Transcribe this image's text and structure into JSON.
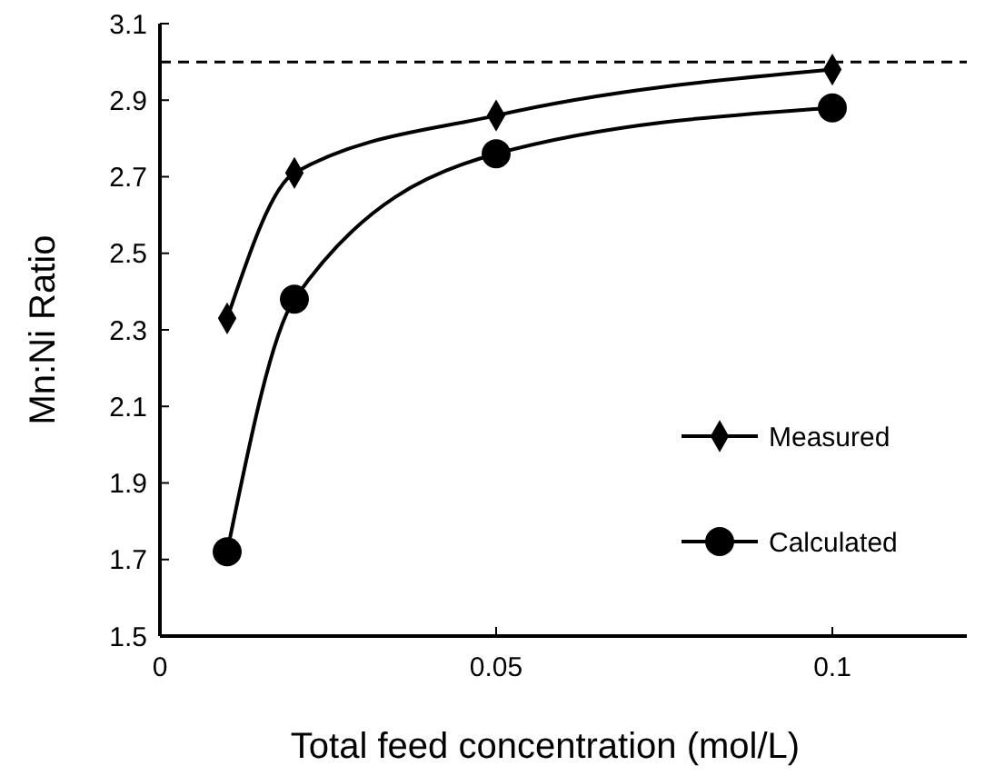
{
  "chart_data": {
    "type": "line",
    "xlabel": "Total feed concentration (mol/L)",
    "ylabel": "Mn:Ni Ratio",
    "xlim": [
      0,
      0.12
    ],
    "xticks": [
      0,
      0.05,
      0.1
    ],
    "ylim": [
      1.5,
      3.1
    ],
    "yticks": [
      1.5,
      1.7,
      1.9,
      2.1,
      2.3,
      2.5,
      2.7,
      2.9,
      3.1
    ],
    "legend": "right",
    "grid": false,
    "series": [
      {
        "name": "Measured",
        "color": "#000000",
        "marker": "diamond",
        "x": [
          0.01,
          0.02,
          0.05,
          0.1
        ],
        "values": [
          2.33,
          2.71,
          2.86,
          2.98
        ]
      },
      {
        "name": "Calculated",
        "color": "#000000",
        "marker": "circle",
        "x": [
          0.01,
          0.02,
          0.05,
          0.1
        ],
        "values": [
          1.72,
          2.38,
          2.76,
          2.88
        ]
      }
    ],
    "ref_lines": [
      {
        "axis": "y",
        "value": 3.0,
        "line_style": "dashed",
        "color": "#000000"
      }
    ]
  }
}
